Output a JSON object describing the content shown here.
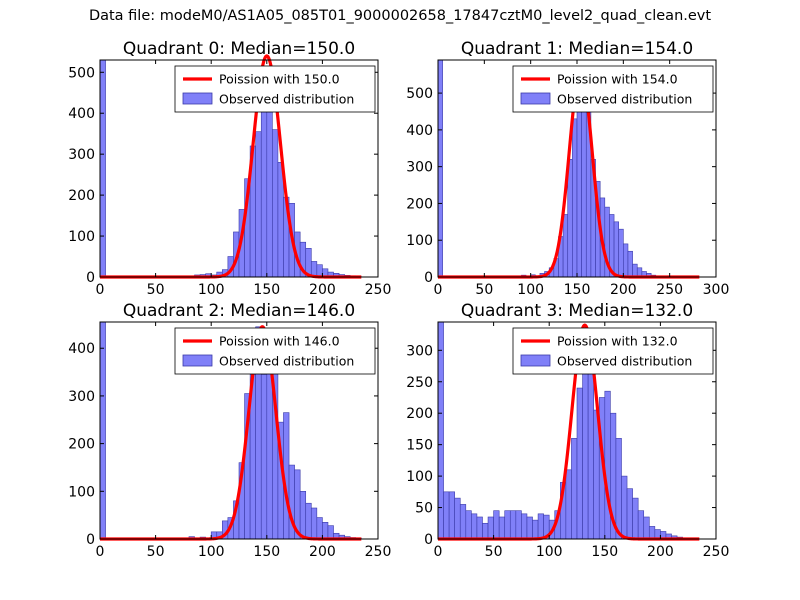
{
  "figure": {
    "suptitle": "Data file: modeM0/AS1A05_085T01_9000002658_17847cztM0_level2_quad_clean.evt",
    "colors": {
      "hist_fill": "#8080f8",
      "hist_edge": "#3a3aa8",
      "poisson_line": "#ff0000",
      "axes": "#000000"
    }
  },
  "chart_data": [
    {
      "type": "bar",
      "title": "Quadrant 0: Median=150.0",
      "xlabel": "",
      "ylabel": "",
      "xlim": [
        0,
        250
      ],
      "ylim": [
        0,
        530
      ],
      "xticks": [
        0,
        50,
        100,
        150,
        200,
        250
      ],
      "yticks": [
        0,
        100,
        200,
        300,
        400,
        500
      ],
      "bin_width": 5,
      "bins": [
        [
          0,
          530
        ],
        [
          75,
          2
        ],
        [
          85,
          5
        ],
        [
          90,
          6
        ],
        [
          95,
          8
        ],
        [
          100,
          5
        ],
        [
          105,
          12
        ],
        [
          110,
          18
        ],
        [
          115,
          50
        ],
        [
          120,
          110
        ],
        [
          125,
          165
        ],
        [
          130,
          240
        ],
        [
          135,
          320
        ],
        [
          140,
          355
        ],
        [
          145,
          470
        ],
        [
          150,
          460
        ],
        [
          155,
          360
        ],
        [
          160,
          280
        ],
        [
          165,
          195
        ],
        [
          170,
          180
        ],
        [
          175,
          110
        ],
        [
          180,
          85
        ],
        [
          185,
          70
        ],
        [
          190,
          38
        ],
        [
          195,
          30
        ],
        [
          200,
          20
        ],
        [
          205,
          12
        ],
        [
          210,
          9
        ],
        [
          215,
          6
        ],
        [
          220,
          4
        ],
        [
          225,
          3
        ],
        [
          230,
          1
        ]
      ],
      "poisson_mu": 150.0,
      "poisson_peak": 540,
      "legend": [
        "Poission with 150.0",
        "Observed distribution"
      ]
    },
    {
      "type": "bar",
      "title": "Quadrant 1: Median=154.0",
      "xlabel": "",
      "ylabel": "",
      "xlim": [
        0,
        300
      ],
      "ylim": [
        0,
        590
      ],
      "xticks": [
        0,
        50,
        100,
        150,
        200,
        250,
        300
      ],
      "yticks": [
        0,
        100,
        200,
        300,
        400,
        500
      ],
      "bin_width": 5,
      "bins": [
        [
          0,
          590
        ],
        [
          90,
          5
        ],
        [
          100,
          6
        ],
        [
          110,
          10
        ],
        [
          115,
          15
        ],
        [
          120,
          25
        ],
        [
          125,
          50
        ],
        [
          130,
          110
        ],
        [
          135,
          170
        ],
        [
          140,
          320
        ],
        [
          145,
          430
        ],
        [
          150,
          510
        ],
        [
          155,
          470
        ],
        [
          160,
          460
        ],
        [
          165,
          320
        ],
        [
          170,
          260
        ],
        [
          175,
          215
        ],
        [
          180,
          190
        ],
        [
          185,
          170
        ],
        [
          190,
          150
        ],
        [
          195,
          130
        ],
        [
          200,
          90
        ],
        [
          205,
          70
        ],
        [
          210,
          35
        ],
        [
          215,
          25
        ],
        [
          220,
          15
        ],
        [
          225,
          10
        ],
        [
          230,
          5
        ],
        [
          235,
          3
        ],
        [
          240,
          2
        ],
        [
          250,
          1
        ],
        [
          265,
          1
        ]
      ],
      "poisson_mu": 154.0,
      "poisson_peak": 560,
      "legend": [
        "Poission with 154.0",
        "Observed distribution"
      ]
    },
    {
      "type": "bar",
      "title": "Quadrant 2: Median=146.0",
      "xlabel": "",
      "ylabel": "",
      "xlim": [
        0,
        250
      ],
      "ylim": [
        0,
        455
      ],
      "xticks": [
        0,
        50,
        100,
        150,
        200,
        250
      ],
      "yticks": [
        0,
        100,
        200,
        300,
        400
      ],
      "bin_width": 5,
      "bins": [
        [
          0,
          455
        ],
        [
          80,
          5
        ],
        [
          90,
          4
        ],
        [
          100,
          15
        ],
        [
          105,
          15
        ],
        [
          110,
          38
        ],
        [
          115,
          45
        ],
        [
          120,
          80
        ],
        [
          125,
          160
        ],
        [
          130,
          305
        ],
        [
          135,
          345
        ],
        [
          140,
          445
        ],
        [
          145,
          345
        ],
        [
          150,
          430
        ],
        [
          155,
          360
        ],
        [
          160,
          245
        ],
        [
          165,
          265
        ],
        [
          170,
          155
        ],
        [
          175,
          145
        ],
        [
          180,
          100
        ],
        [
          185,
          75
        ],
        [
          190,
          65
        ],
        [
          195,
          45
        ],
        [
          200,
          35
        ],
        [
          205,
          28
        ],
        [
          210,
          12
        ],
        [
          215,
          8
        ],
        [
          220,
          5
        ],
        [
          225,
          3
        ],
        [
          230,
          2
        ]
      ],
      "poisson_mu": 146.0,
      "poisson_peak": 445,
      "legend": [
        "Poission with 146.0",
        "Observed distribution"
      ]
    },
    {
      "type": "bar",
      "title": "Quadrant 3: Median=132.0",
      "xlabel": "",
      "ylabel": "",
      "xlim": [
        0,
        250
      ],
      "ylim": [
        0,
        345
      ],
      "xticks": [
        0,
        50,
        100,
        150,
        200,
        250
      ],
      "yticks": [
        0,
        50,
        100,
        150,
        200,
        250,
        300
      ],
      "bin_width": 5,
      "bins": [
        [
          0,
          345
        ],
        [
          5,
          75
        ],
        [
          10,
          75
        ],
        [
          15,
          65
        ],
        [
          20,
          55
        ],
        [
          25,
          45
        ],
        [
          30,
          40
        ],
        [
          35,
          35
        ],
        [
          40,
          25
        ],
        [
          45,
          35
        ],
        [
          50,
          45
        ],
        [
          55,
          35
        ],
        [
          60,
          45
        ],
        [
          65,
          45
        ],
        [
          70,
          45
        ],
        [
          75,
          40
        ],
        [
          80,
          35
        ],
        [
          85,
          30
        ],
        [
          90,
          40
        ],
        [
          95,
          38
        ],
        [
          100,
          30
        ],
        [
          105,
          45
        ],
        [
          110,
          90
        ],
        [
          115,
          110
        ],
        [
          120,
          160
        ],
        [
          125,
          240
        ],
        [
          130,
          300
        ],
        [
          135,
          305
        ],
        [
          140,
          205
        ],
        [
          145,
          225
        ],
        [
          150,
          235
        ],
        [
          155,
          200
        ],
        [
          160,
          160
        ],
        [
          165,
          100
        ],
        [
          170,
          80
        ],
        [
          175,
          65
        ],
        [
          180,
          45
        ],
        [
          185,
          35
        ],
        [
          190,
          20
        ],
        [
          195,
          15
        ],
        [
          200,
          12
        ],
        [
          205,
          8
        ],
        [
          210,
          5
        ],
        [
          215,
          3
        ],
        [
          220,
          1
        ]
      ],
      "poisson_mu": 132.0,
      "poisson_peak": 340,
      "legend": [
        "Poission with 132.0",
        "Observed distribution"
      ]
    }
  ]
}
